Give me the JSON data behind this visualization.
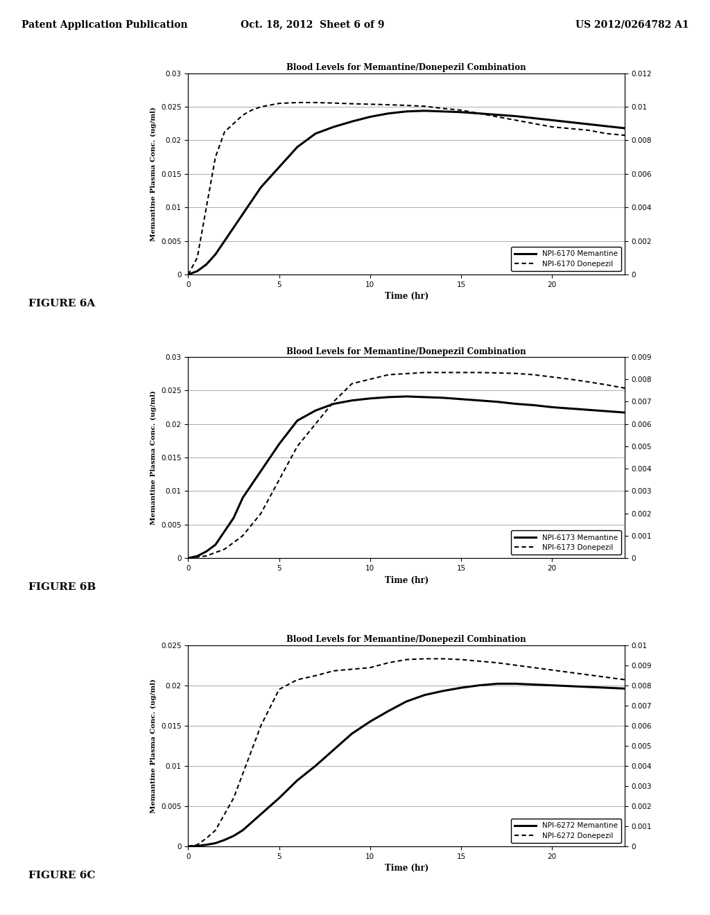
{
  "title": "Blood Levels for Memantine/Donepezil Combination",
  "xlabel": "Time (hr)",
  "ylabel_left": "Memantine Plasma Conc. (ug/ml)",
  "header_left": "Patent Application Publication",
  "header_mid": "Oct. 18, 2012  Sheet 6 of 9",
  "header_right": "US 2012/0264782 A1",
  "background_color": "#f0f0f0",
  "charts": [
    {
      "figure_label": "FIGURE 6A",
      "memantine_label": "NPI-6170 Memantine",
      "donepezil_label": "NPI-6170 Donepezil",
      "ylim_left": [
        0,
        0.03
      ],
      "ylim_right": [
        0,
        0.012
      ],
      "yticks_left": [
        0,
        0.005,
        0.01,
        0.015,
        0.02,
        0.025,
        0.03
      ],
      "yticks_right": [
        0,
        0.002,
        0.004,
        0.006,
        0.008,
        0.01,
        0.012
      ],
      "memantine_t": [
        0,
        0.5,
        1.0,
        1.5,
        2.0,
        2.5,
        3.0,
        4.0,
        5.0,
        6.0,
        7.0,
        8.0,
        9.0,
        10.0,
        11.0,
        12.0,
        13.0,
        14.0,
        15.0,
        16.0,
        17.0,
        18.0,
        19.0,
        20.0,
        21.0,
        22.0,
        23.0,
        24.0
      ],
      "memantine_y": [
        0,
        0.0005,
        0.0015,
        0.003,
        0.005,
        0.007,
        0.009,
        0.013,
        0.016,
        0.019,
        0.021,
        0.022,
        0.0228,
        0.0235,
        0.024,
        0.0243,
        0.0244,
        0.0243,
        0.0242,
        0.024,
        0.0238,
        0.0236,
        0.0233,
        0.023,
        0.0227,
        0.0224,
        0.0221,
        0.0218
      ],
      "donepezil_t": [
        0,
        0.5,
        1.0,
        1.5,
        2.0,
        2.5,
        3.0,
        3.5,
        4.0,
        4.5,
        5.0,
        6.0,
        7.0,
        8.0,
        9.0,
        10.0,
        11.0,
        12.0,
        13.0,
        14.0,
        15.0,
        16.0,
        17.0,
        18.0,
        19.0,
        20.0,
        21.0,
        22.0,
        23.0,
        24.0
      ],
      "donepezil_y": [
        0,
        0.001,
        0.004,
        0.007,
        0.0085,
        0.009,
        0.0095,
        0.0098,
        0.01,
        0.0101,
        0.0102,
        0.01025,
        0.01025,
        0.01022,
        0.01018,
        0.01015,
        0.01012,
        0.01008,
        0.01003,
        0.0099,
        0.0098,
        0.0096,
        0.0094,
        0.0092,
        0.009,
        0.0088,
        0.0087,
        0.0086,
        0.0084,
        0.0083
      ]
    },
    {
      "figure_label": "FIGURE 6B",
      "memantine_label": "NPI-6173 Memantine",
      "donepezil_label": "NPI-6173 Donepezil",
      "ylim_left": [
        0,
        0.03
      ],
      "ylim_right": [
        0,
        0.009
      ],
      "yticks_left": [
        0,
        0.005,
        0.01,
        0.015,
        0.02,
        0.025,
        0.03
      ],
      "yticks_right": [
        0,
        0.001,
        0.002,
        0.003,
        0.004,
        0.005,
        0.006,
        0.007,
        0.008,
        0.009
      ],
      "memantine_t": [
        0,
        0.5,
        1.0,
        1.5,
        2.0,
        2.5,
        3.0,
        4.0,
        5.0,
        6.0,
        7.0,
        8.0,
        9.0,
        10.0,
        11.0,
        12.0,
        13.0,
        14.0,
        15.0,
        16.0,
        17.0,
        18.0,
        19.0,
        20.0,
        21.0,
        22.0,
        23.0,
        24.0
      ],
      "memantine_y": [
        0,
        0.0003,
        0.001,
        0.002,
        0.004,
        0.006,
        0.009,
        0.013,
        0.017,
        0.0205,
        0.022,
        0.023,
        0.0235,
        0.0238,
        0.024,
        0.0241,
        0.024,
        0.0239,
        0.0237,
        0.0235,
        0.0233,
        0.023,
        0.0228,
        0.0225,
        0.0223,
        0.0221,
        0.0219,
        0.0217
      ],
      "donepezil_t": [
        0,
        1.0,
        2.0,
        3.0,
        4.0,
        5.0,
        6.0,
        7.0,
        8.0,
        9.0,
        10.0,
        11.0,
        12.0,
        13.0,
        14.0,
        15.0,
        16.0,
        17.0,
        18.0,
        19.0,
        20.0,
        21.0,
        22.0,
        23.0,
        24.0
      ],
      "donepezil_y": [
        0,
        0.0001,
        0.0004,
        0.001,
        0.002,
        0.0035,
        0.005,
        0.006,
        0.007,
        0.0078,
        0.008,
        0.0082,
        0.00825,
        0.0083,
        0.0083,
        0.0083,
        0.0083,
        0.00828,
        0.00826,
        0.0082,
        0.0081,
        0.008,
        0.00788,
        0.00775,
        0.0076
      ]
    },
    {
      "figure_label": "FIGURE 6C",
      "memantine_label": "NPI-6272 Memantine",
      "donepezil_label": "NPI-6272 Donepezil",
      "ylim_left": [
        0,
        0.025
      ],
      "ylim_right": [
        0,
        0.01
      ],
      "yticks_left": [
        0,
        0.005,
        0.01,
        0.015,
        0.02,
        0.025
      ],
      "yticks_right": [
        0,
        0.001,
        0.002,
        0.003,
        0.004,
        0.005,
        0.006,
        0.007,
        0.008,
        0.009,
        0.01
      ],
      "memantine_t": [
        0,
        0.5,
        1.0,
        1.5,
        2.0,
        2.5,
        3.0,
        3.5,
        4.0,
        5.0,
        6.0,
        7.0,
        8.0,
        9.0,
        10.0,
        11.0,
        12.0,
        13.0,
        14.0,
        15.0,
        16.0,
        17.0,
        18.0,
        19.0,
        20.0,
        21.0,
        22.0,
        23.0,
        24.0
      ],
      "memantine_y": [
        0,
        5e-05,
        0.0002,
        0.0004,
        0.0008,
        0.0013,
        0.002,
        0.003,
        0.004,
        0.006,
        0.0082,
        0.01,
        0.012,
        0.014,
        0.0155,
        0.0168,
        0.018,
        0.0188,
        0.0193,
        0.0197,
        0.02,
        0.0202,
        0.0202,
        0.0201,
        0.02,
        0.0199,
        0.0198,
        0.0197,
        0.0196
      ],
      "donepezil_t": [
        0,
        0.5,
        1.0,
        1.5,
        2.0,
        2.5,
        3.0,
        3.5,
        4.0,
        5.0,
        6.0,
        7.0,
        8.0,
        9.0,
        10.0,
        11.0,
        12.0,
        13.0,
        14.0,
        15.0,
        16.0,
        17.0,
        18.0,
        19.0,
        20.0,
        21.0,
        22.0,
        23.0,
        24.0
      ],
      "donepezil_y_left_scale": [
        0,
        0.0002,
        0.001,
        0.002,
        0.004,
        0.006,
        0.009,
        0.012,
        0.015,
        0.0195,
        0.0207,
        0.0212,
        0.0218,
        0.022,
        0.0222,
        0.0228,
        0.0232,
        0.0233,
        0.0233,
        0.0232,
        0.023,
        0.0228,
        0.0225,
        0.0222,
        0.0219,
        0.0216,
        0.0213,
        0.021,
        0.0207
      ]
    }
  ]
}
